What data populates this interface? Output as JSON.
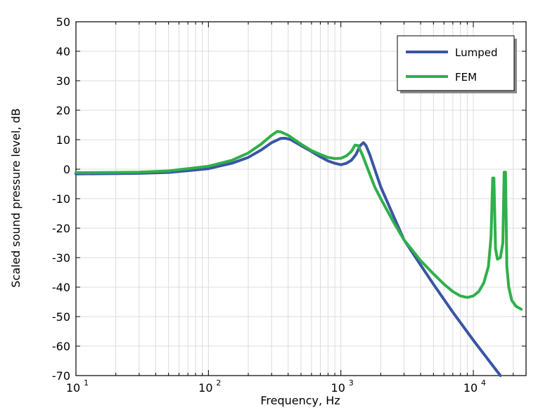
{
  "chart_data": {
    "type": "line",
    "title": "",
    "xlabel": "Frequency, Hz",
    "ylabel": "Scaled sound pressure level, dB",
    "xscale": "log",
    "xlim": [
      10,
      25000
    ],
    "ylim": [
      -70,
      50
    ],
    "grid": true,
    "legend_placement": "top-right",
    "x_tick_labels": [
      {
        "base": "10",
        "exp": "1",
        "value": 10
      },
      {
        "base": "10",
        "exp": "2",
        "value": 100
      },
      {
        "base": "10",
        "exp": "3",
        "value": 1000
      },
      {
        "base": "10",
        "exp": "4",
        "value": 10000
      }
    ],
    "y_ticks": [
      50,
      40,
      30,
      20,
      10,
      0,
      -10,
      -20,
      -30,
      -40,
      -50,
      -60,
      -70
    ],
    "series": [
      {
        "name": "Lumped",
        "color": "#3a55a4",
        "points": [
          [
            10,
            -1.6
          ],
          [
            20,
            -1.5
          ],
          [
            30,
            -1.4
          ],
          [
            50,
            -1.1
          ],
          [
            70,
            -0.5
          ],
          [
            100,
            0.2
          ],
          [
            150,
            2
          ],
          [
            200,
            4
          ],
          [
            250,
            6.5
          ],
          [
            300,
            9
          ],
          [
            350,
            10.4
          ],
          [
            380,
            10.5
          ],
          [
            420,
            10
          ],
          [
            500,
            8
          ],
          [
            600,
            6
          ],
          [
            700,
            4.2
          ],
          [
            800,
            2.8
          ],
          [
            900,
            2
          ],
          [
            1000,
            1.5
          ],
          [
            1100,
            2
          ],
          [
            1200,
            3
          ],
          [
            1300,
            5
          ],
          [
            1400,
            8
          ],
          [
            1480,
            9
          ],
          [
            1550,
            8
          ],
          [
            1650,
            5
          ],
          [
            1800,
            0
          ],
          [
            2000,
            -6
          ],
          [
            2500,
            -16
          ],
          [
            3000,
            -24
          ],
          [
            4000,
            -32.5
          ],
          [
            5000,
            -39
          ],
          [
            7000,
            -48.5
          ],
          [
            10000,
            -58
          ],
          [
            16000,
            -70
          ]
        ]
      },
      {
        "name": "FEM",
        "color": "#2fb04a",
        "points": [
          [
            10,
            -1.2
          ],
          [
            20,
            -1.1
          ],
          [
            30,
            -1
          ],
          [
            50,
            -0.6
          ],
          [
            70,
            0.2
          ],
          [
            100,
            1
          ],
          [
            150,
            3
          ],
          [
            200,
            5.5
          ],
          [
            250,
            8.5
          ],
          [
            300,
            11.5
          ],
          [
            330,
            12.8
          ],
          [
            350,
            12.7
          ],
          [
            400,
            11.5
          ],
          [
            500,
            8.5
          ],
          [
            600,
            6.3
          ],
          [
            700,
            5
          ],
          [
            800,
            4
          ],
          [
            900,
            3.6
          ],
          [
            1000,
            3.7
          ],
          [
            1100,
            4.5
          ],
          [
            1200,
            6
          ],
          [
            1280,
            8.2
          ],
          [
            1350,
            8
          ],
          [
            1450,
            5
          ],
          [
            1600,
            0
          ],
          [
            1800,
            -6
          ],
          [
            2000,
            -10
          ],
          [
            2500,
            -18
          ],
          [
            3000,
            -24
          ],
          [
            4000,
            -31
          ],
          [
            5000,
            -35.5
          ],
          [
            6000,
            -39
          ],
          [
            7000,
            -41.5
          ],
          [
            8000,
            -43
          ],
          [
            9000,
            -43.5
          ],
          [
            10000,
            -43
          ],
          [
            11000,
            -41.5
          ],
          [
            12000,
            -38.5
          ],
          [
            13000,
            -33
          ],
          [
            13600,
            -23
          ],
          [
            14000,
            -3
          ],
          [
            14300,
            -3
          ],
          [
            14700,
            -27
          ],
          [
            15200,
            -30.5
          ],
          [
            16000,
            -30
          ],
          [
            16700,
            -25
          ],
          [
            17100,
            -1
          ],
          [
            17500,
            -1
          ],
          [
            17900,
            -33
          ],
          [
            18500,
            -40
          ],
          [
            19500,
            -44.5
          ],
          [
            21000,
            -46.5
          ],
          [
            23000,
            -47.5
          ]
        ]
      }
    ]
  }
}
